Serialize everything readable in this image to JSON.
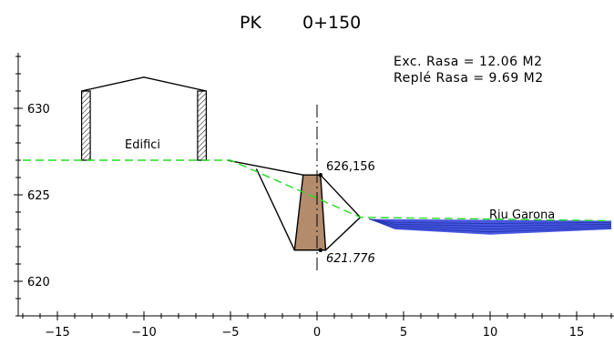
{
  "title": {
    "pk_label": "PK",
    "pk_value": "0+150"
  },
  "areas": {
    "excavation": "Exc. Rasa = 12.06 M2",
    "fill": "Replé Rasa = 9.69 M2"
  },
  "labels": {
    "building": "Edifici",
    "river": "Riu Garona",
    "top_elev": "626,156",
    "bottom_elev": "621.776"
  },
  "axes": {
    "x_ticks": [
      -15,
      -10,
      -5,
      0,
      5,
      10,
      15
    ],
    "y_ticks": [
      620,
      625,
      630
    ],
    "x_range": [
      -17,
      17
    ],
    "y_range": [
      617,
      635
    ]
  },
  "colors": {
    "terrain_line": "#22dd22",
    "fill_material": "#b48c6c",
    "water": "#3344dd",
    "lines": "#000000"
  },
  "profile": {
    "terrain": [
      [
        -17,
        627.0
      ],
      [
        -5,
        627.0
      ],
      [
        2.5,
        623.7
      ],
      [
        17,
        623.5
      ]
    ],
    "building": {
      "roof": [
        [
          -13.6,
          631.0
        ],
        [
          -10.0,
          631.8
        ],
        [
          -6.4,
          631.0
        ]
      ],
      "left_wall": [
        [
          -13.6,
          631.0
        ],
        [
          -13.1,
          631.0
        ],
        [
          -13.1,
          627.0
        ],
        [
          -13.6,
          627.0
        ]
      ],
      "right_wall": [
        [
          -6.9,
          631.0
        ],
        [
          -6.4,
          631.0
        ],
        [
          -6.4,
          627.0
        ],
        [
          -6.9,
          627.0
        ]
      ]
    },
    "fill_block": [
      [
        -0.8,
        626.15
      ],
      [
        0.2,
        626.15
      ],
      [
        0.5,
        621.8
      ],
      [
        -1.3,
        621.8
      ]
    ],
    "excavation_lines": {
      "upper": [
        [
          -5.2,
          627.0
        ],
        [
          -0.8,
          626.15
        ]
      ],
      "left_slope": [
        [
          -3.5,
          626.5
        ],
        [
          -1.3,
          621.8
        ]
      ],
      "right_slope": [
        [
          0.2,
          626.15
        ],
        [
          2.5,
          623.7
        ],
        [
          0.5,
          621.8
        ]
      ]
    },
    "water_surface": [
      [
        3.0,
        623.6
      ],
      [
        17,
        623.5
      ]
    ],
    "water_bottom": [
      [
        3.0,
        623.6
      ],
      [
        4.5,
        623.0
      ],
      [
        10.0,
        622.7
      ],
      [
        17,
        623.0
      ]
    ]
  }
}
